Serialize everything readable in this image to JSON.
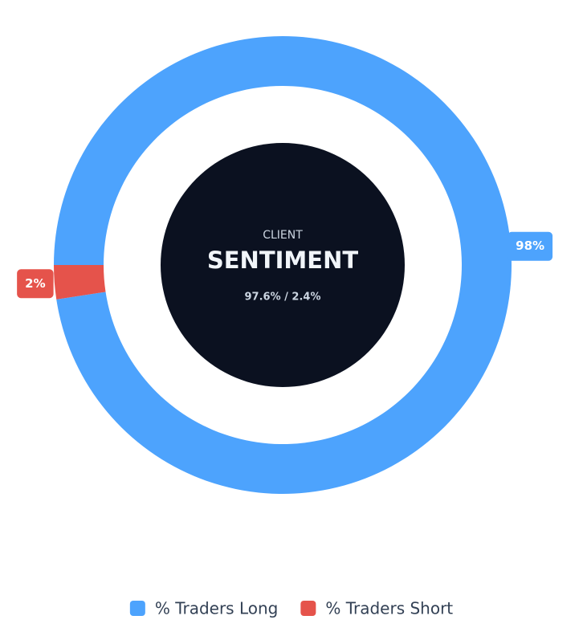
{
  "chart_data": {
    "type": "doughnut",
    "categories": [
      "% Traders Long",
      "% Traders Short"
    ],
    "values": [
      97.6,
      2.4
    ],
    "value_labels": [
      "98%",
      "2%"
    ],
    "colors": [
      "#4da3fd",
      "#e5534b"
    ],
    "center_label": "CLIENT",
    "center_title": "SENTIMENT",
    "center_subtitle": "97.6% / 2.4%"
  }
}
